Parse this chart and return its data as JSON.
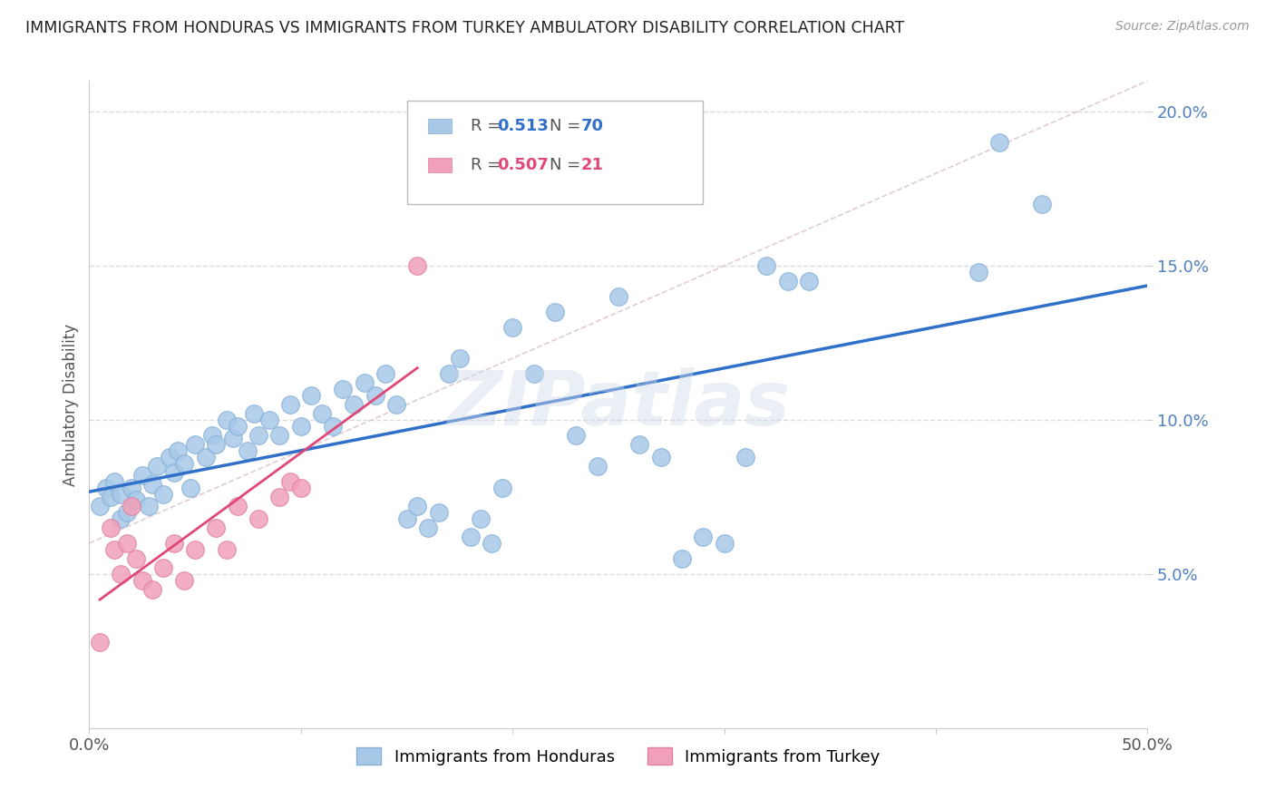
{
  "title": "IMMIGRANTS FROM HONDURAS VS IMMIGRANTS FROM TURKEY AMBULATORY DISABILITY CORRELATION CHART",
  "source": "Source: ZipAtlas.com",
  "ylabel": "Ambulatory Disability",
  "xlim": [
    0.0,
    0.5
  ],
  "ylim": [
    0.0,
    0.21
  ],
  "y_ticks": [
    0.05,
    0.1,
    0.15,
    0.2
  ],
  "y_tick_labels": [
    "5.0%",
    "10.0%",
    "15.0%",
    "20.0%"
  ],
  "x_ticks": [
    0.0,
    0.1,
    0.2,
    0.3,
    0.4,
    0.5
  ],
  "x_tick_labels": [
    "0.0%",
    "",
    "",
    "",
    "",
    "50.0%"
  ],
  "honduras_color": "#a8c8e8",
  "turkey_color": "#f0a0b8",
  "honduras_edge_color": "#85b0d8",
  "turkey_edge_color": "#e080a0",
  "honduras_line_color": "#3070c8",
  "turkey_line_color": "#e04878",
  "tick_color": "#5080c0",
  "grid_color": "#d8d8d8",
  "r_honduras": "0.513",
  "n_honduras": "70",
  "r_turkey": "0.507",
  "n_turkey": "21",
  "legend_label_honduras": "Immigrants from Honduras",
  "legend_label_turkey": "Immigrants from Turkey",
  "watermark": "ZIPatlas",
  "background_color": "#ffffff",
  "honduras_scatter": [
    [
      0.005,
      0.072
    ],
    [
      0.008,
      0.078
    ],
    [
      0.01,
      0.075
    ],
    [
      0.012,
      0.08
    ],
    [
      0.015,
      0.068
    ],
    [
      0.015,
      0.076
    ],
    [
      0.018,
      0.07
    ],
    [
      0.02,
      0.078
    ],
    [
      0.022,
      0.074
    ],
    [
      0.025,
      0.082
    ],
    [
      0.028,
      0.072
    ],
    [
      0.03,
      0.079
    ],
    [
      0.032,
      0.085
    ],
    [
      0.035,
      0.076
    ],
    [
      0.038,
      0.088
    ],
    [
      0.04,
      0.083
    ],
    [
      0.042,
      0.09
    ],
    [
      0.045,
      0.086
    ],
    [
      0.048,
      0.078
    ],
    [
      0.05,
      0.092
    ],
    [
      0.055,
      0.088
    ],
    [
      0.058,
      0.095
    ],
    [
      0.06,
      0.092
    ],
    [
      0.065,
      0.1
    ],
    [
      0.068,
      0.094
    ],
    [
      0.07,
      0.098
    ],
    [
      0.075,
      0.09
    ],
    [
      0.078,
      0.102
    ],
    [
      0.08,
      0.095
    ],
    [
      0.085,
      0.1
    ],
    [
      0.09,
      0.095
    ],
    [
      0.095,
      0.105
    ],
    [
      0.1,
      0.098
    ],
    [
      0.105,
      0.108
    ],
    [
      0.11,
      0.102
    ],
    [
      0.115,
      0.098
    ],
    [
      0.12,
      0.11
    ],
    [
      0.125,
      0.105
    ],
    [
      0.13,
      0.112
    ],
    [
      0.135,
      0.108
    ],
    [
      0.14,
      0.115
    ],
    [
      0.145,
      0.105
    ],
    [
      0.15,
      0.068
    ],
    [
      0.155,
      0.072
    ],
    [
      0.16,
      0.065
    ],
    [
      0.165,
      0.07
    ],
    [
      0.17,
      0.115
    ],
    [
      0.175,
      0.12
    ],
    [
      0.18,
      0.062
    ],
    [
      0.185,
      0.068
    ],
    [
      0.19,
      0.06
    ],
    [
      0.195,
      0.078
    ],
    [
      0.2,
      0.13
    ],
    [
      0.21,
      0.115
    ],
    [
      0.22,
      0.135
    ],
    [
      0.23,
      0.095
    ],
    [
      0.24,
      0.085
    ],
    [
      0.25,
      0.14
    ],
    [
      0.26,
      0.092
    ],
    [
      0.27,
      0.088
    ],
    [
      0.28,
      0.055
    ],
    [
      0.29,
      0.062
    ],
    [
      0.3,
      0.06
    ],
    [
      0.31,
      0.088
    ],
    [
      0.32,
      0.15
    ],
    [
      0.33,
      0.145
    ],
    [
      0.34,
      0.145
    ],
    [
      0.42,
      0.148
    ],
    [
      0.43,
      0.19
    ],
    [
      0.45,
      0.17
    ]
  ],
  "turkey_scatter": [
    [
      0.005,
      0.028
    ],
    [
      0.01,
      0.065
    ],
    [
      0.012,
      0.058
    ],
    [
      0.015,
      0.05
    ],
    [
      0.018,
      0.06
    ],
    [
      0.02,
      0.072
    ],
    [
      0.022,
      0.055
    ],
    [
      0.025,
      0.048
    ],
    [
      0.03,
      0.045
    ],
    [
      0.035,
      0.052
    ],
    [
      0.04,
      0.06
    ],
    [
      0.045,
      0.048
    ],
    [
      0.05,
      0.058
    ],
    [
      0.06,
      0.065
    ],
    [
      0.065,
      0.058
    ],
    [
      0.07,
      0.072
    ],
    [
      0.08,
      0.068
    ],
    [
      0.09,
      0.075
    ],
    [
      0.095,
      0.08
    ],
    [
      0.1,
      0.078
    ],
    [
      0.155,
      0.15
    ]
  ]
}
